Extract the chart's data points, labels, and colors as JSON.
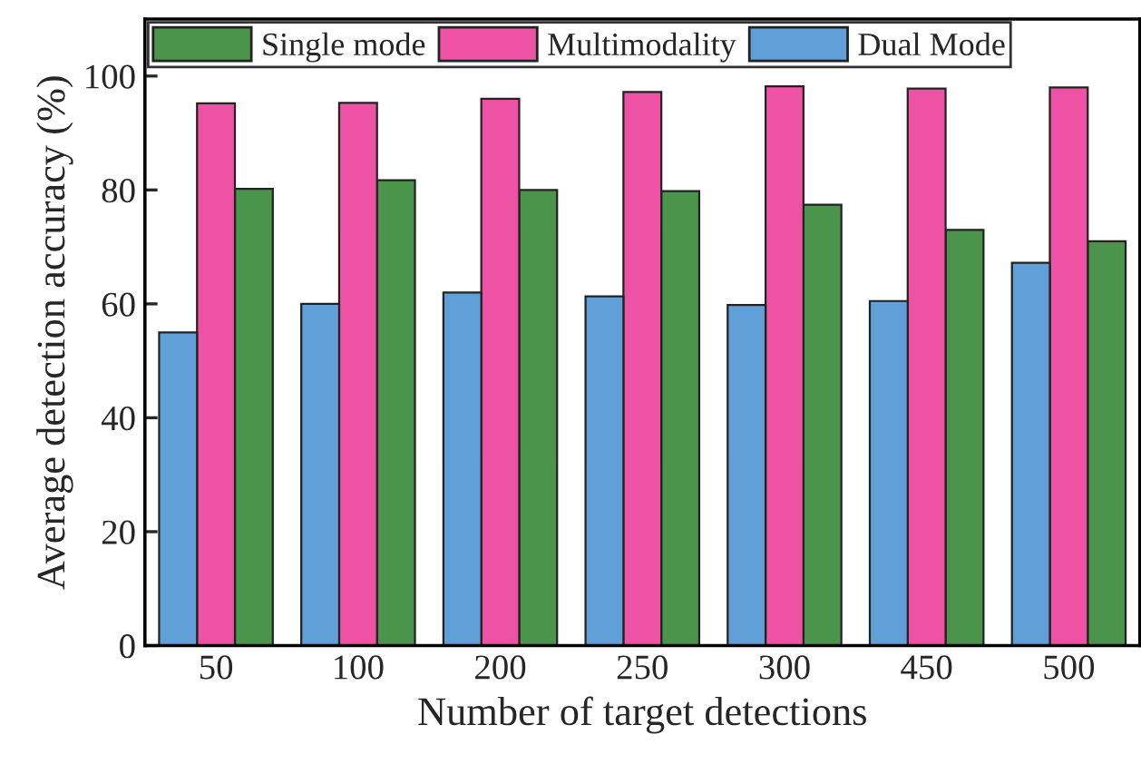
{
  "chart_data": {
    "type": "bar",
    "xlabel": "Number of target detections",
    "ylabel": "Average detection accuracy (%)",
    "categories": [
      "50",
      "100",
      "200",
      "250",
      "300",
      "450",
      "500"
    ],
    "series": [
      {
        "name": "Single mode",
        "color": "#4a944b",
        "values": [
          80.2,
          81.7,
          80,
          79.8,
          77.4,
          73,
          71
        ]
      },
      {
        "name": "Multimodality",
        "color": "#ee52a5",
        "values": [
          95.2,
          95.3,
          96,
          97.2,
          98.2,
          97.8,
          98
        ]
      },
      {
        "name": "Dual Mode",
        "color": "#609fd8",
        "values": [
          55,
          60,
          62,
          61.3,
          59.8,
          60.5,
          67.2
        ]
      }
    ],
    "ylim": [
      0,
      110
    ],
    "yticks": [
      0,
      20,
      40,
      60,
      80,
      100
    ],
    "grid": false,
    "legend": "top"
  }
}
